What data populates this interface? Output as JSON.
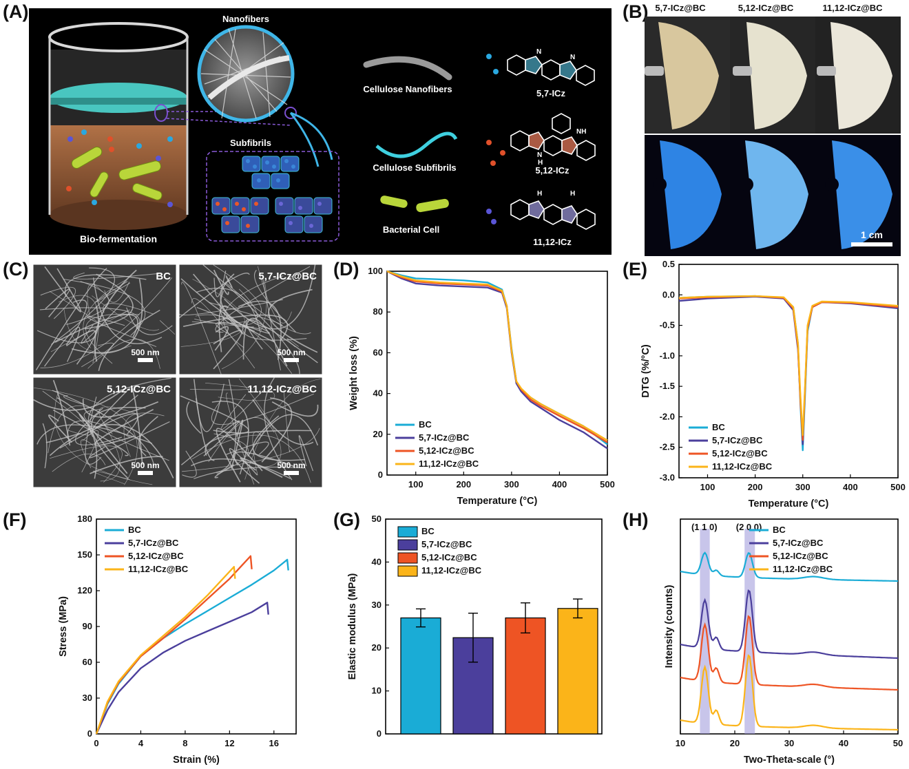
{
  "labels": {
    "A": "(A)",
    "B": "(B)",
    "C": "(C)",
    "D": "(D)",
    "E": "(E)",
    "F": "(F)",
    "G": "(G)",
    "H": "(H)"
  },
  "colors": {
    "BC": "#1aacd6",
    "ICz57": "#4b3f9c",
    "ICz512": "#ee5424",
    "ICz1112": "#fbb419",
    "black": "#000000"
  },
  "panelA": {
    "nanofibers": "Nanofibers",
    "subfibrils": "Subfibrils",
    "biofermentation": "Bio-fermentation",
    "cellulose_nanofibers": "Cellulose  Nanofibers",
    "cellulose_subfibrils": "Cellulose  Subfibrils",
    "bacterial_cell": "Bacterial  Cell",
    "mol1": "5,7-ICz",
    "mol2": "5,12-ICz",
    "mol3": "11,12-ICz",
    "nh": "NH",
    "n": "N",
    "h": "H"
  },
  "panelB": {
    "headers": [
      "5,7-ICz@BC",
      "5,12-ICz@BC",
      "11,12-ICz@BC"
    ],
    "scale": "1 cm"
  },
  "panelC": {
    "tiles": [
      "BC",
      "5,7-ICz@BC",
      "5,12-ICz@BC",
      "11,12-ICz@BC"
    ],
    "scale": "500 nm"
  },
  "legend": [
    "BC",
    "5,7-ICz@BC",
    "5,12-ICz@BC",
    "11,12-ICz@BC"
  ],
  "chart_data": [
    {
      "id": "D",
      "type": "line",
      "xlabel": "Temperature (°C)",
      "ylabel": "Weight loss (%)",
      "xlim": [
        40,
        500
      ],
      "ylim": [
        0,
        100
      ],
      "xticks": [
        100,
        200,
        300,
        400,
        500
      ],
      "yticks": [
        0,
        20,
        40,
        60,
        80,
        100
      ],
      "series": [
        {
          "name": "BC",
          "x": [
            40,
            70,
            100,
            150,
            200,
            250,
            280,
            290,
            300,
            310,
            320,
            340,
            360,
            400,
            450,
            500
          ],
          "y": [
            100,
            98,
            96.5,
            96,
            95.5,
            94.5,
            91,
            83,
            62,
            46,
            42,
            38,
            35,
            30,
            24,
            15
          ]
        },
        {
          "name": "5,7-ICz@BC",
          "x": [
            40,
            70,
            100,
            150,
            200,
            250,
            280,
            290,
            300,
            310,
            320,
            340,
            360,
            400,
            450,
            500
          ],
          "y": [
            100,
            96.5,
            94,
            93,
            92.5,
            92,
            89.5,
            82,
            60,
            45,
            41,
            36,
            33,
            27,
            21,
            13
          ]
        },
        {
          "name": "5,12-ICz@BC",
          "x": [
            40,
            70,
            100,
            150,
            200,
            250,
            280,
            290,
            300,
            310,
            320,
            340,
            360,
            400,
            450,
            500
          ],
          "y": [
            100,
            97,
            95,
            94,
            93.5,
            93,
            90,
            83,
            61,
            46,
            42,
            37,
            34,
            29,
            23,
            16
          ]
        },
        {
          "name": "11,12-ICz@BC",
          "x": [
            40,
            70,
            100,
            150,
            200,
            250,
            280,
            290,
            300,
            310,
            320,
            340,
            360,
            400,
            450,
            500
          ],
          "y": [
            100,
            97.5,
            95.5,
            94.5,
            94,
            93.5,
            90.5,
            83,
            61,
            46,
            42.5,
            38,
            35,
            30,
            24,
            17
          ]
        }
      ]
    },
    {
      "id": "E",
      "type": "line",
      "xlabel": "Temperature (°C)",
      "ylabel": "DTG (%/°C)",
      "xlim": [
        40,
        500
      ],
      "ylim": [
        -3.0,
        0.5
      ],
      "xticks": [
        100,
        200,
        300,
        400,
        500
      ],
      "yticks": [
        -3.0,
        -2.5,
        -2.0,
        -1.5,
        -1.0,
        -0.5,
        0.0,
        0.5
      ],
      "series": [
        {
          "name": "BC",
          "x": [
            40,
            100,
            200,
            260,
            280,
            290,
            295,
            300,
            305,
            310,
            320,
            340,
            400,
            500
          ],
          "y": [
            -0.05,
            -0.03,
            -0.02,
            -0.05,
            -0.2,
            -0.8,
            -1.8,
            -2.55,
            -1.6,
            -0.6,
            -0.2,
            -0.12,
            -0.13,
            -0.2
          ]
        },
        {
          "name": "5,7-ICz@BC",
          "x": [
            40,
            100,
            200,
            260,
            280,
            290,
            295,
            300,
            305,
            310,
            320,
            340,
            400,
            500
          ],
          "y": [
            -0.1,
            -0.06,
            -0.03,
            -0.06,
            -0.25,
            -0.9,
            -1.7,
            -2.45,
            -1.5,
            -0.55,
            -0.2,
            -0.12,
            -0.14,
            -0.22
          ]
        },
        {
          "name": "5,12-ICz@BC",
          "x": [
            40,
            100,
            200,
            260,
            280,
            290,
            295,
            300,
            305,
            310,
            320,
            340,
            400,
            500
          ],
          "y": [
            -0.06,
            -0.04,
            -0.02,
            -0.05,
            -0.22,
            -0.85,
            -1.75,
            -2.38,
            -1.5,
            -0.55,
            -0.2,
            -0.12,
            -0.13,
            -0.2
          ]
        },
        {
          "name": "11,12-ICz@BC",
          "x": [
            40,
            100,
            200,
            260,
            280,
            290,
            295,
            300,
            305,
            310,
            320,
            340,
            400,
            500
          ],
          "y": [
            -0.05,
            -0.03,
            -0.02,
            -0.04,
            -0.2,
            -0.8,
            -1.65,
            -2.3,
            -1.45,
            -0.5,
            -0.18,
            -0.11,
            -0.12,
            -0.18
          ]
        }
      ]
    },
    {
      "id": "F",
      "type": "line",
      "xlabel": "Strain (%)",
      "ylabel": "Stress (MPa)",
      "xlim": [
        0,
        18
      ],
      "ylim": [
        0,
        180
      ],
      "xticks": [
        0,
        4,
        8,
        12,
        16
      ],
      "yticks": [
        0,
        30,
        60,
        90,
        120,
        150,
        180
      ],
      "series": [
        {
          "name": "BC",
          "x": [
            0,
            1,
            2,
            4,
            6,
            8,
            10,
            12,
            14,
            16,
            17.2,
            17.3
          ],
          "y": [
            0,
            25,
            42,
            65,
            80,
            92,
            103,
            114,
            125,
            137,
            146,
            137
          ]
        },
        {
          "name": "5,7-ICz@BC",
          "x": [
            0,
            1,
            2,
            4,
            6,
            8,
            10,
            12,
            14,
            15.4,
            15.5
          ],
          "y": [
            0,
            20,
            35,
            55,
            68,
            78,
            86,
            94,
            102,
            110,
            100
          ]
        },
        {
          "name": "5,12-ICz@BC",
          "x": [
            0,
            1,
            2,
            4,
            6,
            8,
            10,
            12,
            13.9,
            14.0
          ],
          "y": [
            0,
            26,
            43,
            65,
            80,
            96,
            113,
            130,
            149,
            138
          ]
        },
        {
          "name": "11,12-ICz@BC",
          "x": [
            0,
            1,
            2,
            4,
            6,
            8,
            10,
            11,
            12.4,
            12.5
          ],
          "y": [
            0,
            27,
            44,
            66,
            82,
            98,
            116,
            126,
            140,
            130
          ]
        }
      ]
    },
    {
      "id": "G",
      "type": "bar",
      "ylabel": "Elastic modulus (MPa)",
      "ylim": [
        0,
        50
      ],
      "yticks": [
        0,
        10,
        20,
        30,
        40,
        50
      ],
      "categories": [
        "BC",
        "5,7-ICz@BC",
        "5,12-ICz@BC",
        "11,12-ICz@BC"
      ],
      "values": [
        27.0,
        22.4,
        27.0,
        29.2
      ],
      "errors": [
        2.1,
        5.7,
        3.5,
        2.2
      ]
    },
    {
      "id": "H",
      "type": "line",
      "xlabel": "Two-Theta-scale (°)",
      "ylabel": "Intensity (counts)",
      "xlim": [
        10,
        50
      ],
      "xticks": [
        10,
        20,
        30,
        40,
        50
      ],
      "annotations": [
        "(1 1 0)",
        "(2 0 0)"
      ],
      "highlight_x": [
        [
          13.6,
          15.4
        ],
        [
          21.8,
          23.7
        ]
      ],
      "series": [
        {
          "name": "BC",
          "offset": 3
        },
        {
          "name": "5,7-ICz@BC",
          "offset": 2
        },
        {
          "name": "5,12-ICz@BC",
          "offset": 1
        },
        {
          "name": "11,12-ICz@BC",
          "offset": 0
        }
      ]
    }
  ]
}
